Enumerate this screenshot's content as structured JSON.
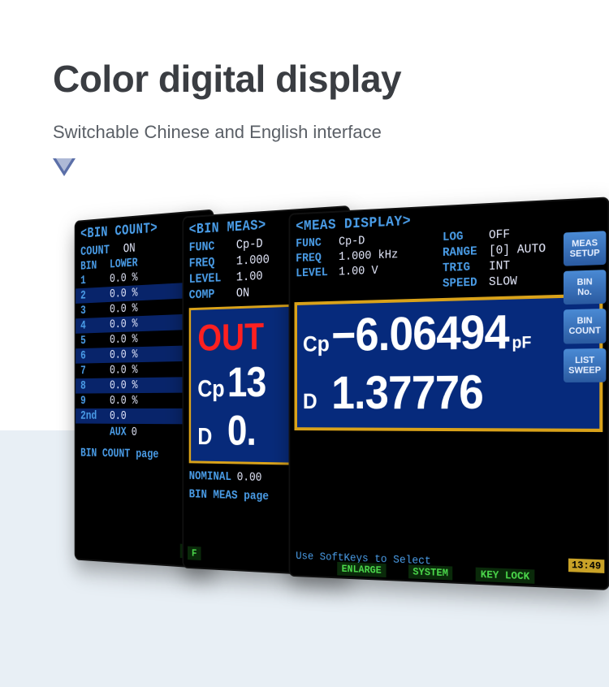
{
  "header": {
    "title": "Color digital display",
    "subtitle": "Switchable Chinese and English interface"
  },
  "arrow_color": "#5b6fa8",
  "screen_bin_count": {
    "title": "<BIN COUNT>",
    "count_label": "COUNT",
    "count_state": "ON",
    "bin_label": "BIN",
    "lower_label": "LOWER",
    "rows": [
      {
        "idx": "1",
        "val": "0.0  %"
      },
      {
        "idx": "2",
        "val": "0.0  %"
      },
      {
        "idx": "3",
        "val": "0.0  %"
      },
      {
        "idx": "4",
        "val": "0.0  %"
      },
      {
        "idx": "5",
        "val": "0.0  %"
      },
      {
        "idx": "6",
        "val": "0.0  %"
      },
      {
        "idx": "7",
        "val": "0.0  %"
      },
      {
        "idx": "8",
        "val": "0.0  %"
      },
      {
        "idx": "9",
        "val": "0.0  %"
      },
      {
        "idx": "2nd",
        "val": "0.0"
      }
    ],
    "aux_label": "AUX",
    "aux_val": "0",
    "footer": "BIN COUNT page",
    "status_file": "FILE"
  },
  "screen_bin_meas": {
    "title": "<BIN MEAS>",
    "params": [
      {
        "label": "FUNC",
        "val": "Cp-D"
      },
      {
        "label": "FREQ",
        "val": "1.000"
      },
      {
        "label": "LEVEL",
        "val": "1.00"
      },
      {
        "label": "COMP",
        "val": "ON"
      }
    ],
    "out_text": "OUT",
    "cp_label": "Cp",
    "cp_val": "13",
    "d_label": "D",
    "d_val": "0.",
    "nominal_label": "NOMINAL",
    "nominal_val": "0.00",
    "footer": "BIN MEAS page"
  },
  "screen_meas": {
    "title": "<MEAS DISPLAY>",
    "left_params": [
      {
        "label": "FUNC",
        "val": "Cp-D"
      },
      {
        "label": "FREQ",
        "val": "1.000 kHz"
      },
      {
        "label": "LEVEL",
        "val": "1.00  V"
      }
    ],
    "right_params": [
      {
        "label": "LOG",
        "val": "OFF"
      },
      {
        "label": "RANGE",
        "val": "[0] AUTO"
      },
      {
        "label": "TRIG",
        "val": "INT"
      },
      {
        "label": "SPEED",
        "val": "SLOW"
      }
    ],
    "readout": {
      "cp_sym": "Cp",
      "cp_val": "−6.06494",
      "cp_unit": "pF",
      "d_sym": "D",
      "d_val": "1.37776"
    },
    "softkeys": [
      "MEAS SETUP",
      "BIN No.",
      "BIN COUNT",
      "LIST SWEEP"
    ],
    "status_hint": "Use SoftKeys to Select",
    "status_buttons": [
      "ENLARGE",
      "SYSTEM",
      "KEY LOCK"
    ],
    "clock": "13:49"
  }
}
